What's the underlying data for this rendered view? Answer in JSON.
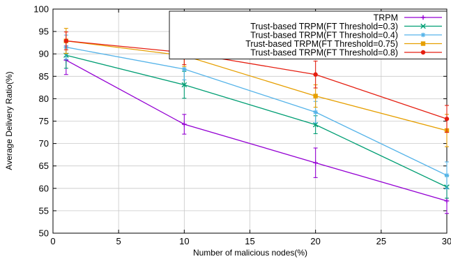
{
  "chart_data": {
    "type": "line",
    "xlabel": "Number of malicious nodes(%)",
    "ylabel": "Average Delivery Ratio(%)",
    "xlim": [
      0,
      30
    ],
    "ylim": [
      50,
      100
    ],
    "xticks": [
      0,
      5,
      10,
      15,
      20,
      25,
      30
    ],
    "yticks": [
      50,
      55,
      60,
      65,
      70,
      75,
      80,
      85,
      90,
      95,
      100
    ],
    "x": [
      1,
      10,
      20,
      30
    ],
    "grid": true,
    "legend_position": "top-right",
    "series": [
      {
        "name": "TRPM",
        "color": "#9400d3",
        "marker": "plus",
        "values": [
          88.6,
          74.3,
          65.7,
          57.2
        ],
        "errors": [
          3.2,
          2.2,
          3.3,
          2.8
        ]
      },
      {
        "name": "Trust-based TRPM(FT Threshold=0.3)",
        "color": "#009e73",
        "marker": "cross",
        "values": [
          89.7,
          83.1,
          74.2,
          60.3
        ],
        "errors": [
          2.9,
          3.0,
          2.0,
          2.5
        ]
      },
      {
        "name": "Trust-based TRPM(FT Threshold=0.4)",
        "color": "#56b4e9",
        "marker": "star",
        "values": [
          91.5,
          86.6,
          77.0,
          62.9
        ],
        "errors": [
          2.7,
          2.4,
          2.4,
          3.0
        ]
      },
      {
        "name": "Trust-based TRPM(FT Threshold=0.75)",
        "color": "#e69f00",
        "marker": "square",
        "values": [
          92.9,
          89.6,
          80.6,
          72.9
        ],
        "errors": [
          2.8,
          2.4,
          2.5,
          3.6
        ]
      },
      {
        "name": "Trust-based TRPM(FT Threshold=0.8)",
        "color": "#e51e10",
        "marker": "circle",
        "values": [
          92.9,
          90.3,
          85.4,
          75.5
        ],
        "errors": [
          2.0,
          2.7,
          3.0,
          3.0
        ]
      }
    ]
  }
}
